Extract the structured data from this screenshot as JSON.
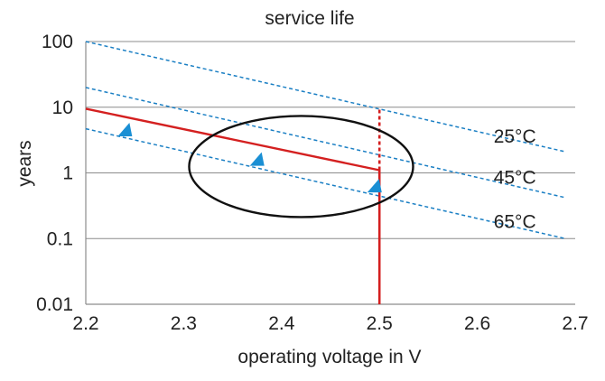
{
  "chart_data": {
    "type": "line",
    "title": "service life",
    "xlabel": "operating voltage in V",
    "ylabel": "years",
    "xlim": [
      2.2,
      2.7
    ],
    "ylim": [
      0.01,
      100
    ],
    "yscale": "log",
    "x_ticks": [
      "2.2",
      "2.3",
      "2.4",
      "2.5",
      "2.6",
      "2.7"
    ],
    "x_tick_values": [
      2.2,
      2.3,
      2.4,
      2.5,
      2.6,
      2.7
    ],
    "y_ticks": [
      "0.01",
      "0.1",
      "1",
      "10",
      "100"
    ],
    "y_tick_values": [
      0.01,
      0.1,
      1,
      10,
      100
    ],
    "grid": "horizontal",
    "series": [
      {
        "name": "25°C",
        "style": "dashed",
        "color": "#1a7fc4",
        "x": [
          2.2,
          2.69
        ],
        "y": [
          100,
          2.1
        ]
      },
      {
        "name": "45°C",
        "style": "dashed",
        "color": "#1a7fc4",
        "x": [
          2.2,
          2.69
        ],
        "y": [
          20,
          0.42
        ]
      },
      {
        "name": "65°C",
        "style": "dashed",
        "color": "#1a7fc4",
        "x": [
          2.2,
          2.69
        ],
        "y": [
          4.7,
          0.1
        ]
      },
      {
        "name": "",
        "style": "solid",
        "color": "#d42020",
        "x": [
          2.2,
          2.5
        ],
        "y": [
          9.5,
          1.1
        ]
      }
    ],
    "vertical_marker": {
      "x": 2.5,
      "solid_range": [
        0.01,
        1.1
      ],
      "dashed_range": [
        1.1,
        9.5
      ],
      "color": "#d42020"
    },
    "arrows": [
      {
        "x": 2.24,
        "y": 4.5,
        "color": "#1a8fd4"
      },
      {
        "x": 2.375,
        "y": 1.6,
        "color": "#1a8fd4"
      },
      {
        "x": 2.495,
        "y": 0.63,
        "color": "#1a8fd4"
      }
    ],
    "ellipse": {
      "center_x": 2.42,
      "center_y": 1.25,
      "color": "#111111"
    },
    "annotations": [
      {
        "text": "25°C",
        "x": 2.66,
        "y": 3.6
      },
      {
        "text": "45°C",
        "x": 2.66,
        "y": 0.85
      },
      {
        "text": "65°C",
        "x": 2.66,
        "y": 0.18
      }
    ]
  }
}
